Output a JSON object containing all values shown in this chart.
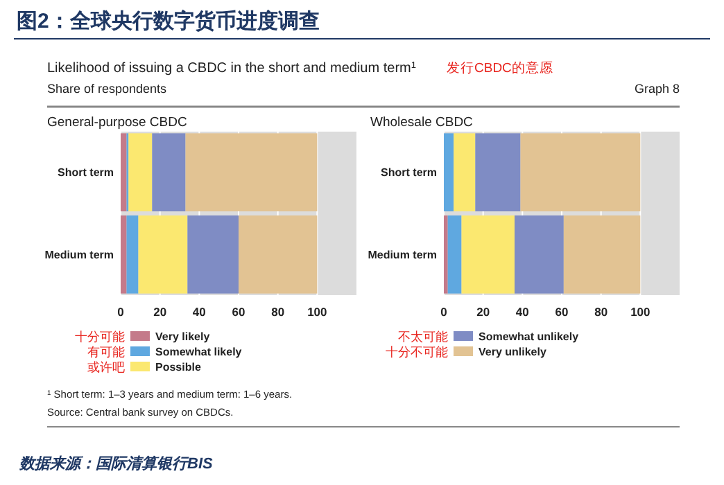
{
  "chart_data": [
    {
      "type": "other",
      "title": "图2：全球央行数字货币进度调查",
      "subtitle": "Likelihood of issuing a CBDC in the short and medium term$^{1}$",
      "annotations": [
        "发行CBDC的意愿",
        "Share of respondents",
        "Graph 8",
        "$^{1}$ Short term: 1–3 years and medium term: 1–6 years.",
        "Source: Central bank survey on CBDCs.",
        "数据来源：国际清算银行BIS"
      ]
    },
    {
      "type": "bar",
      "orientation": "horizontal",
      "stacked": true,
      "title": "General-purpose CBDC",
      "categories": [
        "Short term",
        "Medium term"
      ],
      "xlim": [
        0,
        120
      ],
      "xticks": [
        0,
        20,
        40,
        60,
        80,
        100
      ],
      "grid": "x",
      "legend": "bottom",
      "annotations": [
        "十分可能",
        "有可能",
        "或许吧"
      ],
      "series": [
        {
          "name": "Very likely",
          "color": "#c47a8a",
          "values": [
            3,
            3
          ]
        },
        {
          "name": "Somewhat likely",
          "color": "#5fa8e0",
          "values": [
            1,
            6
          ]
        },
        {
          "name": "Possible",
          "color": "#fbe870",
          "values": [
            12,
            25
          ]
        },
        {
          "color": "#7f8cc4",
          "values": [
            17,
            26
          ]
        },
        {
          "color": "#e2c393",
          "values": [
            67,
            40
          ]
        }
      ]
    },
    {
      "type": "bar",
      "orientation": "horizontal",
      "stacked": true,
      "title": "Wholesale CBDC",
      "categories": [
        "Short term",
        "Medium term"
      ],
      "xlim": [
        0,
        120
      ],
      "xticks": [
        0,
        20,
        40,
        60,
        80,
        100
      ],
      "grid": "x",
      "legend": "bottom",
      "annotations": [
        "不太可能",
        "十分不可能"
      ],
      "series": [
        {
          "color": "#c47a8a",
          "values": [
            0,
            2
          ]
        },
        {
          "color": "#5fa8e0",
          "values": [
            5,
            7
          ]
        },
        {
          "color": "#fbe870",
          "values": [
            11,
            27
          ]
        },
        {
          "name": "Somewhat unlikely",
          "color": "#7f8cc4",
          "values": [
            23,
            25
          ]
        },
        {
          "name": "Very unlikely",
          "color": "#e2c393",
          "values": [
            61,
            39
          ]
        }
      ]
    }
  ]
}
